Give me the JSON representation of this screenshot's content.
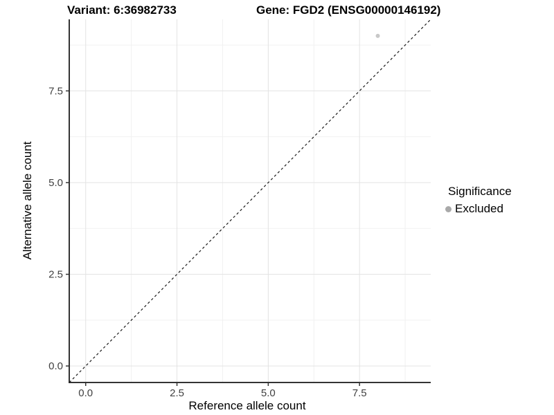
{
  "chart": {
    "title_left": "Variant: 6:36982733",
    "title_right": "Gene: FGD2 (ENSG00000146192)",
    "xlabel": "Reference allele count",
    "ylabel": "Alternative allele count",
    "x_ticks": [
      "0.0",
      "2.5",
      "5.0",
      "7.5"
    ],
    "y_ticks": [
      "0.0",
      "2.5",
      "5.0",
      "7.5"
    ],
    "legend": {
      "title": "Significance",
      "items": [
        {
          "label": "Excluded",
          "key_color": "#a9a9a9"
        }
      ]
    },
    "colors": {
      "point": "#c8c8c8",
      "legend_key": "#a9a9a9",
      "grid_major": "#e3e3e3",
      "grid_minor": "#f1f1f1",
      "axis_line": "#333333",
      "tick_label": "#404040",
      "reference_line": "#1a1a1a"
    }
  },
  "chart_data": {
    "type": "scatter",
    "title": "Variant: 6:36982733    Gene: FGD2 (ENSG00000146192)",
    "xlabel": "Reference allele count",
    "ylabel": "Alternative allele count",
    "xlim": [
      -0.45,
      9.45
    ],
    "ylim": [
      -0.45,
      9.45
    ],
    "x_tick_values": [
      0.0,
      2.5,
      5.0,
      7.5
    ],
    "y_tick_values": [
      0.0,
      2.5,
      5.0,
      7.5
    ],
    "grid": "major and minor gridlines, light gray, white background",
    "legend_position": "right",
    "series": [
      {
        "name": "Excluded",
        "color": "#c8c8c8",
        "marker": "circle",
        "points": [
          {
            "x": 8,
            "y": 9
          }
        ]
      }
    ],
    "reference_line": {
      "equation": "y = x",
      "style": "dashed",
      "color": "#1a1a1a",
      "span": "full panel diagonal"
    }
  }
}
